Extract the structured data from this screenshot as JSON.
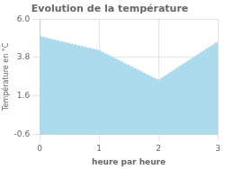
{
  "chart_data": {
    "type": "area",
    "title": "Evolution de la température",
    "xlabel": "heure par heure",
    "ylabel": "Température en °C",
    "x": [
      0,
      1,
      2,
      3
    ],
    "values": [
      5.0,
      4.2,
      2.5,
      4.7
    ],
    "xlim": [
      0,
      3
    ],
    "ylim": [
      -0.6,
      6.0
    ],
    "xticks": [
      0,
      1,
      2,
      3
    ],
    "yticks": [
      -0.6,
      1.6,
      3.8,
      {
        "value": 6.0,
        "label": "6.0"
      }
    ],
    "color": "#aadcee",
    "line_style": "dotted",
    "grid": true
  }
}
